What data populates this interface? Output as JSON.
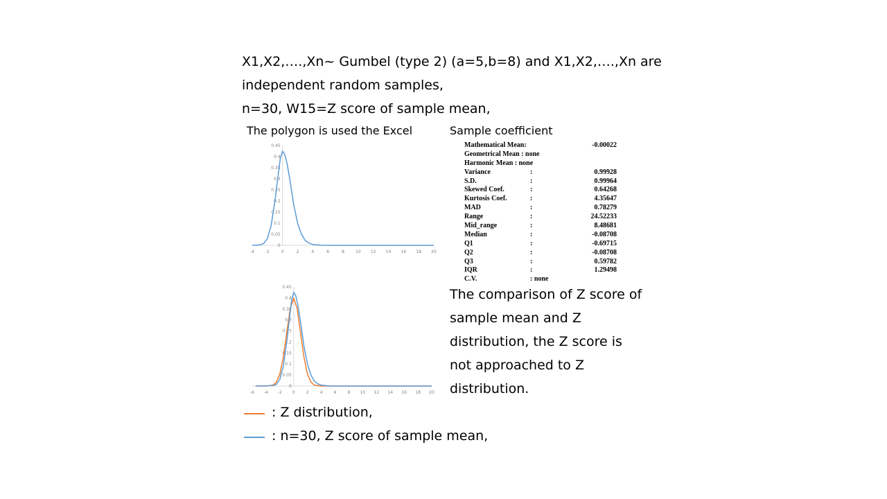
{
  "header": {
    "line1": "X1,X2,….,Xn~ Gumbel (type 2) (a=5,b=8) and X1,X2,….,Xn are",
    "line2": "independent random samples,",
    "line3": "n=30, W15=Z score of sample mean,"
  },
  "chart_caption": "The polygon is used the Excel",
  "stats_title": "Sample coefficient",
  "stats": [
    {
      "name": "Mathematical Mean:",
      "colon": "",
      "value": "-0.00022"
    },
    {
      "name": "Geometrical Mean : none",
      "colon": "",
      "value": ""
    },
    {
      "name": "Harmonic Mean     : none",
      "colon": "",
      "value": ""
    },
    {
      "name": "Variance",
      "colon": ":",
      "value": "0.99928"
    },
    {
      "name": "S.D.",
      "colon": ":",
      "value": "0.99964"
    },
    {
      "name": "Skewed Coef.",
      "colon": ":",
      "value": "0.64268"
    },
    {
      "name": "Kurtosis Coef.",
      "colon": ":",
      "value": "4.35647"
    },
    {
      "name": "MAD",
      "colon": ":",
      "value": "0.78279"
    },
    {
      "name": "Range",
      "colon": ":",
      "value": "24.52233"
    },
    {
      "name": "Mid_range",
      "colon": ":",
      "value": "8.48681"
    },
    {
      "name": "Median",
      "colon": ":",
      "value": "-0.08708"
    },
    {
      "name": "Q1",
      "colon": ":",
      "value": "-0.69715"
    },
    {
      "name": "Q2",
      "colon": ":",
      "value": "-0.08708"
    },
    {
      "name": "Q3",
      "colon": ":",
      "value": "0.59782"
    },
    {
      "name": "IQR",
      "colon": ":",
      "value": "1.29498"
    },
    {
      "name": "C.V.",
      "colon": ": none",
      "value": ""
    }
  ],
  "comparison_text": [
    "The comparison of Z score of",
    "sample mean and Z",
    "distribution, the Z score is",
    "not approached to Z",
    "distribution."
  ],
  "legend": [
    {
      "label": ": Z distribution,",
      "color": "#ed7d31"
    },
    {
      "label": ":   n=30, Z score of sample mean,",
      "color": "#5b9bd5"
    }
  ],
  "chart_data": [
    {
      "type": "line",
      "xlim": [
        -4,
        20
      ],
      "ylim": [
        0,
        0.45
      ],
      "x_ticks": [
        "-4",
        "-2",
        "0",
        "2",
        "4",
        "6",
        "8",
        "10",
        "12",
        "14",
        "16",
        "18",
        "20"
      ],
      "y_ticks": [
        "0",
        "0.05",
        "0.1",
        "0.15",
        "0.2",
        "0.25",
        "0.3",
        "0.35",
        "0.4",
        "0.45"
      ],
      "series": [
        {
          "color": "#5b9bd5",
          "x": [
            -4,
            -3,
            -2.5,
            -2,
            -1.5,
            -1,
            -0.6,
            -0.3,
            0,
            0.3,
            0.6,
            1,
            1.5,
            2,
            2.5,
            3,
            3.5,
            4,
            5,
            6,
            20
          ],
          "y": [
            0,
            0.002,
            0.008,
            0.03,
            0.09,
            0.2,
            0.31,
            0.39,
            0.425,
            0.41,
            0.37,
            0.29,
            0.18,
            0.1,
            0.05,
            0.022,
            0.01,
            0.004,
            0.001,
            0,
            0
          ]
        }
      ]
    },
    {
      "type": "line",
      "xlim": [
        -6,
        20
      ],
      "ylim": [
        0,
        0.45
      ],
      "x_ticks": [
        "-6",
        "-4",
        "-2",
        "0",
        "2",
        "4",
        "6",
        "8",
        "10",
        "12",
        "14",
        "16",
        "18",
        "20"
      ],
      "y_ticks": [
        "0",
        "0.05",
        "0.1",
        "0.15",
        "0.2",
        "0.25",
        "0.3",
        "0.35",
        "0.4",
        "0.45"
      ],
      "series": [
        {
          "color": "#ed7d31",
          "x": [
            -5.5,
            -4,
            -3,
            -2.5,
            -2,
            -1.5,
            -1,
            -0.5,
            0,
            0.5,
            1,
            1.5,
            2,
            2.5,
            3,
            4,
            5,
            20
          ],
          "y": [
            0,
            0.0001,
            0.004,
            0.018,
            0.054,
            0.13,
            0.242,
            0.352,
            0.399,
            0.352,
            0.242,
            0.13,
            0.054,
            0.018,
            0.004,
            0.0001,
            0,
            0
          ]
        },
        {
          "color": "#5b9bd5",
          "x": [
            -5.5,
            -3,
            -2.5,
            -2,
            -1.5,
            -1,
            -0.6,
            -0.3,
            0,
            0.3,
            0.6,
            1,
            1.5,
            2,
            2.5,
            3,
            3.5,
            4,
            5,
            6,
            20
          ],
          "y": [
            0,
            0.002,
            0.008,
            0.03,
            0.09,
            0.2,
            0.31,
            0.39,
            0.425,
            0.41,
            0.37,
            0.29,
            0.18,
            0.1,
            0.05,
            0.022,
            0.01,
            0.004,
            0.001,
            0,
            0
          ]
        }
      ]
    }
  ]
}
